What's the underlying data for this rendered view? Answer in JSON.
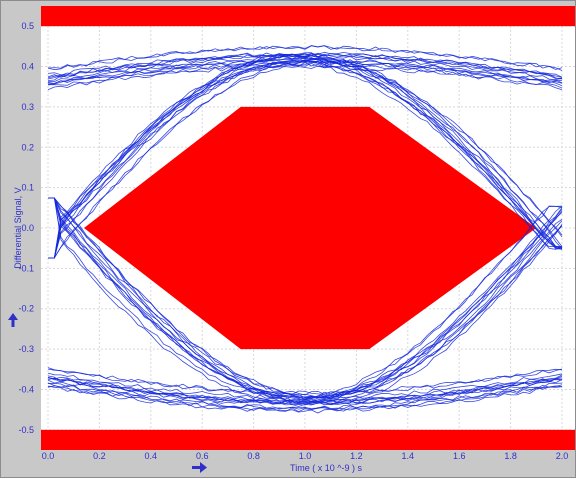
{
  "chart_data": {
    "type": "eye diagram",
    "xlabel": "Time  ( x 10 ^-9 ) s",
    "ylabel": "Differential Signal, V",
    "xlim": [
      0.0,
      2.0
    ],
    "ylim": [
      -0.55,
      0.55
    ],
    "x_ticks": [
      "0.0",
      "0.2",
      "0.4",
      "0.6",
      "0.8",
      "1.0",
      "1.2",
      "1.4",
      "1.6",
      "1.8",
      "2.0"
    ],
    "y_ticks": [
      "0.5",
      "0.4",
      "0.3",
      "0.2",
      "0.1",
      "0.0",
      "-0.1",
      "-0.2",
      "-0.3",
      "-0.4",
      "-0.5"
    ],
    "grid": true,
    "mask": {
      "upper_band": {
        "y_from": 0.5,
        "y_to": 0.55
      },
      "lower_band": {
        "y_from": -0.55,
        "y_to": -0.5
      },
      "hexagon": [
        [
          0.14,
          0.0
        ],
        [
          0.75,
          0.3
        ],
        [
          1.25,
          0.3
        ],
        [
          1.9,
          0.0
        ],
        [
          1.25,
          -0.3
        ],
        [
          0.75,
          -0.3
        ]
      ]
    },
    "trace_levels": {
      "high": 0.37,
      "low": -0.37
    },
    "crossings": [
      0.0,
      2.0
    ],
    "eye_opening": {
      "peak_high": 0.46,
      "peak_low": -0.47
    },
    "traces": 50
  },
  "colors": {
    "mask": "#ff0000",
    "trace": "#1428dc",
    "plot_bg": "#ffffff",
    "frame_bg": "#c8c8c8",
    "label": "#3030c8"
  },
  "icons": {
    "y_axis_arrow": "up-arrow-icon",
    "x_axis_arrow": "right-arrow-icon"
  }
}
